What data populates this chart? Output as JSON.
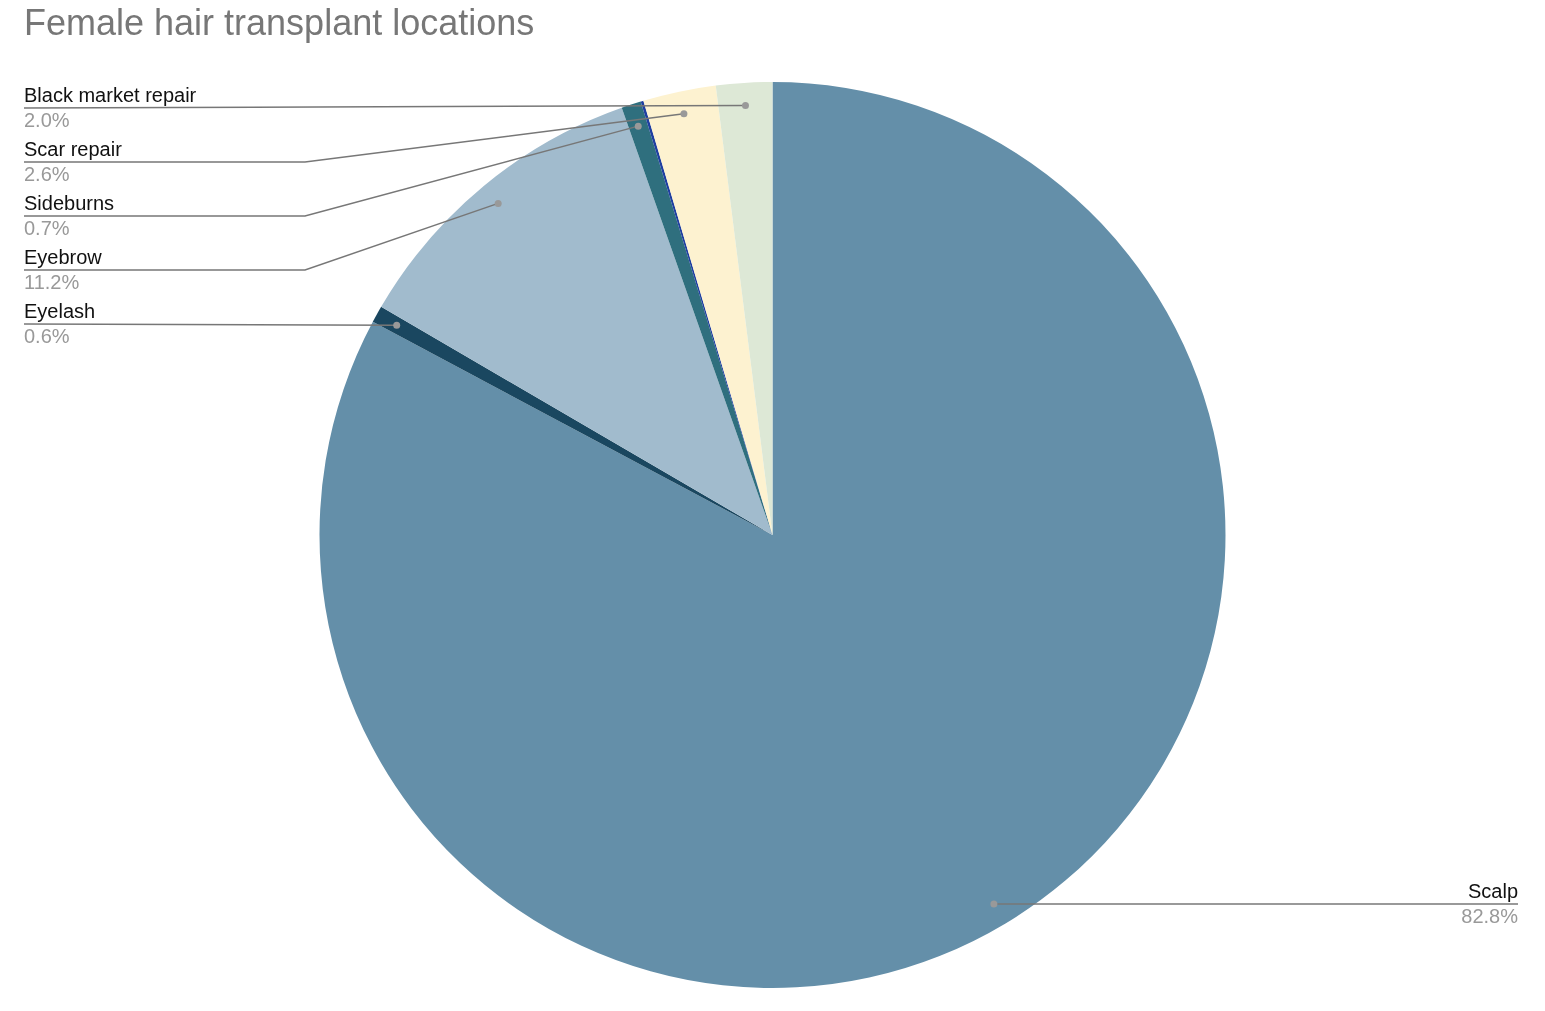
{
  "chart_data": {
    "type": "pie",
    "title": "Female hair transplant locations",
    "categories": [
      "Scalp",
      "Eyelash",
      "Eyebrow",
      "Sideburns",
      null,
      "Scar repair",
      "Black market repair"
    ],
    "values": [
      82.8,
      0.6,
      11.2,
      0.7,
      0.1,
      2.6,
      2.0
    ],
    "colors": [
      "#648fa9",
      "#1a4760",
      "#a1bbcd",
      "#2f6f7e",
      "#1f3fa0",
      "#fdf2d0",
      "#dde8d6"
    ],
    "value_labels": [
      "82.8%",
      "0.6%",
      "11.2%",
      "0.7%",
      null,
      "2.6%",
      "2.0%"
    ]
  }
}
